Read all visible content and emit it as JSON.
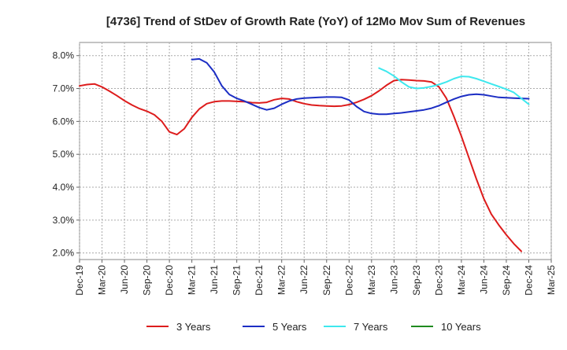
{
  "chart_data": {
    "type": "line",
    "title": "[4736]  Trend of StDev of Growth Rate (YoY) of 12Mo Mov Sum of Revenues",
    "xlabel": "",
    "ylabel": "",
    "ylim": [
      1.8,
      8.4
    ],
    "yticks": [
      2.0,
      3.0,
      4.0,
      5.0,
      6.0,
      7.0,
      8.0
    ],
    "ytick_labels": [
      "2.0%",
      "3.0%",
      "4.0%",
      "5.0%",
      "6.0%",
      "7.0%",
      "8.0%"
    ],
    "xtick_labels": [
      "Dec-19",
      "Mar-20",
      "Jun-20",
      "Sep-20",
      "Dec-20",
      "Mar-21",
      "Jun-21",
      "Sep-21",
      "Dec-21",
      "Mar-22",
      "Jun-22",
      "Sep-22",
      "Dec-22",
      "Mar-23",
      "Jun-23",
      "Sep-23",
      "Dec-23",
      "Mar-24",
      "Jun-24",
      "Sep-24",
      "Dec-24",
      "Mar-25"
    ],
    "x_index_range": [
      0,
      63
    ],
    "grid": true,
    "legend_position": "bottom",
    "series": [
      {
        "name": "3 Years",
        "color": "#dd1c1c",
        "start_index": 0,
        "values": [
          7.08,
          7.12,
          7.14,
          7.05,
          6.92,
          6.78,
          6.63,
          6.5,
          6.39,
          6.31,
          6.2,
          6.0,
          5.68,
          5.6,
          5.78,
          6.12,
          6.38,
          6.54,
          6.6,
          6.62,
          6.62,
          6.61,
          6.6,
          6.57,
          6.56,
          6.58,
          6.66,
          6.7,
          6.68,
          6.6,
          6.54,
          6.5,
          6.48,
          6.47,
          6.46,
          6.47,
          6.51,
          6.58,
          6.67,
          6.78,
          6.93,
          7.1,
          7.24,
          7.27,
          7.26,
          7.24,
          7.23,
          7.2,
          7.05,
          6.7,
          6.15,
          5.55,
          4.9,
          4.25,
          3.65,
          3.18,
          2.85,
          2.55,
          2.28,
          2.05
        ]
      },
      {
        "name": "5 Years",
        "color": "#1c2ec4",
        "start_index": 15,
        "values": [
          7.88,
          7.9,
          7.78,
          7.5,
          7.08,
          6.82,
          6.7,
          6.62,
          6.52,
          6.42,
          6.35,
          6.4,
          6.52,
          6.62,
          6.68,
          6.71,
          6.72,
          6.73,
          6.74,
          6.74,
          6.73,
          6.65,
          6.45,
          6.3,
          6.24,
          6.22,
          6.22,
          6.24,
          6.26,
          6.29,
          6.32,
          6.35,
          6.4,
          6.48,
          6.58,
          6.68,
          6.76,
          6.81,
          6.83,
          6.81,
          6.77,
          6.73,
          6.72,
          6.71,
          6.7,
          6.69
        ]
      },
      {
        "name": "7 Years",
        "color": "#3ee8ee",
        "start_index": 40,
        "values": [
          7.62,
          7.52,
          7.38,
          7.2,
          7.05,
          7.0,
          7.02,
          7.06,
          7.12,
          7.2,
          7.3,
          7.37,
          7.36,
          7.3,
          7.22,
          7.14,
          7.06,
          6.98,
          6.88,
          6.7,
          6.52
        ]
      },
      {
        "name": "10 Years",
        "color": "#1f8a1f",
        "start_index": 0,
        "values": []
      }
    ]
  }
}
